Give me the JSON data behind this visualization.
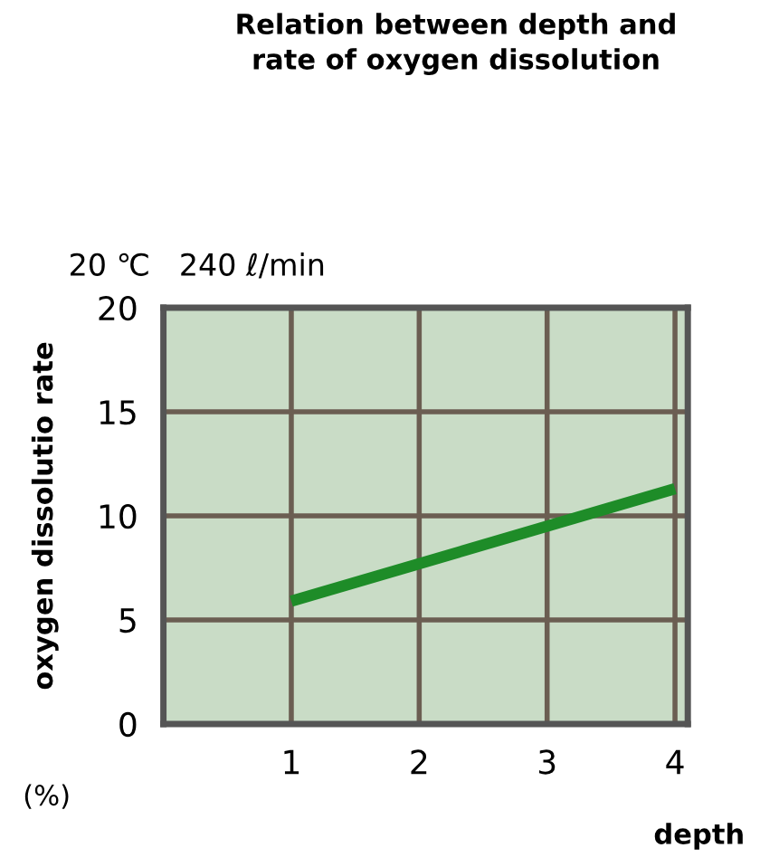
{
  "chart_data": {
    "type": "line",
    "title": "Relation between depth and\nrate of oxygen dissolution",
    "subtitle": "20 ℃   240 ℓ/min",
    "ylabel": "oxygen dissolutio rate",
    "xlabel": "depth",
    "annotations": [
      "(%)"
    ],
    "series": [
      {
        "color": "#1e8c28",
        "x": [
          1,
          4
        ],
        "values": [
          5.9,
          11.3
        ]
      }
    ],
    "xlim": [
      0,
      4.1
    ],
    "xticks": [
      1,
      2,
      3,
      4
    ],
    "ylim": [
      0,
      20
    ],
    "yticks": [
      0,
      5,
      10,
      15,
      20
    ],
    "grid": true,
    "line_style": "solid",
    "marker": "none"
  }
}
